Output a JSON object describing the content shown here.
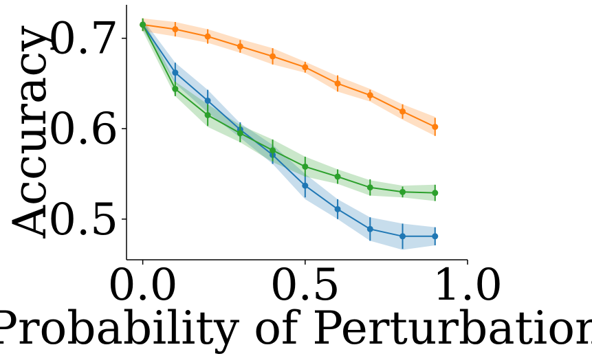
{
  "chart_data": {
    "type": "line",
    "title": "",
    "xlabel": "Probability of Perturbation",
    "ylabel": "Accuracy",
    "xlim": [
      -0.05,
      1.0
    ],
    "ylim": [
      0.455,
      0.737
    ],
    "x_ticks": [
      0.0,
      0.5,
      1.0
    ],
    "x_tick_labels": [
      "0.0",
      "0.5",
      "1.0"
    ],
    "y_ticks": [
      0.5,
      0.6,
      0.7
    ],
    "y_tick_labels": [
      "0.5",
      "0.6",
      "0.7"
    ],
    "grid": false,
    "x": [
      0.0,
      0.1,
      0.2,
      0.3,
      0.4,
      0.5,
      0.6,
      0.7,
      0.8,
      0.9
    ],
    "series": [
      {
        "name": "blue",
        "color": "#1f77b4",
        "values": [
          0.715,
          0.662,
          0.631,
          0.599,
          0.571,
          0.537,
          0.511,
          0.489,
          0.481,
          0.481
        ],
        "band_low": [
          0.71,
          0.65,
          0.618,
          0.59,
          0.561,
          0.522,
          0.5,
          0.476,
          0.466,
          0.471
        ],
        "band_high": [
          0.721,
          0.673,
          0.643,
          0.606,
          0.582,
          0.55,
          0.522,
          0.502,
          0.495,
          0.491
        ],
        "err": [
          0.006,
          0.011,
          0.012,
          0.008,
          0.01,
          0.013,
          0.011,
          0.013,
          0.014,
          0.01
        ]
      },
      {
        "name": "orange",
        "color": "#ff7f0e",
        "values": [
          0.715,
          0.71,
          0.702,
          0.691,
          0.68,
          0.668,
          0.65,
          0.637,
          0.619,
          0.602
        ],
        "band_low": [
          0.708,
          0.702,
          0.695,
          0.684,
          0.671,
          0.662,
          0.641,
          0.63,
          0.61,
          0.592
        ],
        "band_high": [
          0.722,
          0.718,
          0.71,
          0.699,
          0.689,
          0.674,
          0.658,
          0.644,
          0.627,
          0.613
        ],
        "err": [
          0.007,
          0.008,
          0.008,
          0.007,
          0.009,
          0.006,
          0.009,
          0.006,
          0.008,
          0.01
        ]
      },
      {
        "name": "green",
        "color": "#2ca02c",
        "values": [
          0.715,
          0.644,
          0.615,
          0.595,
          0.576,
          0.558,
          0.547,
          0.535,
          0.53,
          0.529
        ],
        "band_low": [
          0.708,
          0.636,
          0.602,
          0.585,
          0.563,
          0.547,
          0.539,
          0.526,
          0.524,
          0.52
        ],
        "band_high": [
          0.722,
          0.652,
          0.627,
          0.604,
          0.588,
          0.569,
          0.555,
          0.543,
          0.537,
          0.538
        ],
        "err": [
          0.007,
          0.008,
          0.012,
          0.01,
          0.012,
          0.011,
          0.008,
          0.009,
          0.006,
          0.009
        ]
      }
    ]
  }
}
